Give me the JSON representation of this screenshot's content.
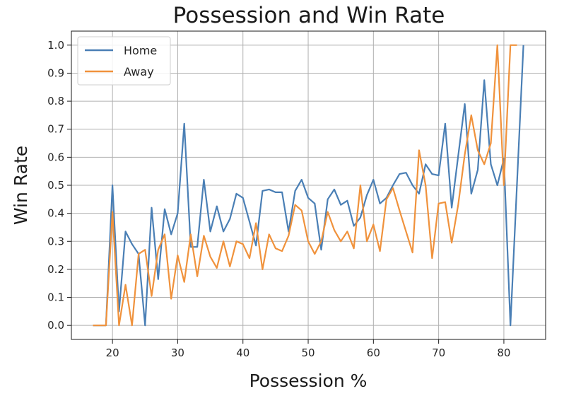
{
  "chart_data": {
    "type": "line",
    "title": "Possession and Win Rate",
    "xlabel": "Possession %",
    "ylabel": "Win Rate",
    "xlim": [
      13.7,
      86.4
    ],
    "ylim": [
      -0.05,
      1.05
    ],
    "xticks": [
      20,
      30,
      40,
      50,
      60,
      70,
      80
    ],
    "yticks": [
      0.0,
      0.1,
      0.2,
      0.3,
      0.4,
      0.5,
      0.6,
      0.7,
      0.8,
      0.9,
      1.0
    ],
    "grid": true,
    "legend": "top-left",
    "series": [
      {
        "name": "Home",
        "color": "#4a7fb5",
        "x": [
          17,
          18,
          19,
          20,
          21,
          22,
          23,
          24,
          25,
          26,
          27,
          28,
          29,
          30,
          31,
          32,
          33,
          34,
          35,
          36,
          37,
          38,
          39,
          40,
          41,
          42,
          43,
          44,
          45,
          46,
          47,
          48,
          49,
          50,
          51,
          52,
          53,
          54,
          55,
          56,
          57,
          58,
          59,
          60,
          61,
          62,
          63,
          64,
          65,
          66,
          67,
          68,
          69,
          70,
          71,
          72,
          73,
          74,
          75,
          76,
          77,
          78,
          79,
          80,
          81,
          82,
          83
        ],
        "y": [
          0.0,
          0.0,
          0.0,
          0.5,
          0.05,
          0.335,
          0.29,
          0.255,
          0.0,
          0.42,
          0.165,
          0.415,
          0.325,
          0.4,
          0.72,
          0.28,
          0.28,
          0.52,
          0.335,
          0.425,
          0.335,
          0.38,
          0.47,
          0.455,
          0.37,
          0.285,
          0.48,
          0.485,
          0.475,
          0.475,
          0.335,
          0.48,
          0.52,
          0.455,
          0.435,
          0.27,
          0.45,
          0.485,
          0.43,
          0.445,
          0.355,
          0.385,
          0.465,
          0.52,
          0.435,
          0.455,
          0.5,
          0.54,
          0.545,
          0.5,
          0.47,
          0.575,
          0.54,
          0.535,
          0.72,
          0.42,
          0.605,
          0.79,
          0.47,
          0.555,
          0.875,
          0.575,
          0.5,
          0.595,
          0.0,
          0.5,
          1.0
        ]
      },
      {
        "name": "Away",
        "color": "#f0923c",
        "x": [
          17,
          18,
          19,
          20,
          21,
          22,
          23,
          24,
          25,
          26,
          27,
          28,
          29,
          30,
          31,
          32,
          33,
          34,
          35,
          36,
          37,
          38,
          39,
          40,
          41,
          42,
          43,
          44,
          45,
          46,
          47,
          48,
          49,
          50,
          51,
          52,
          53,
          54,
          55,
          56,
          57,
          58,
          59,
          60,
          61,
          62,
          63,
          64,
          65,
          66,
          67,
          68,
          69,
          70,
          71,
          72,
          73,
          74,
          75,
          76,
          77,
          78,
          79,
          80,
          81,
          82
        ],
        "y": [
          0.0,
          0.0,
          0.0,
          0.405,
          0.0,
          0.145,
          0.0,
          0.255,
          0.27,
          0.105,
          0.27,
          0.325,
          0.095,
          0.25,
          0.155,
          0.325,
          0.175,
          0.32,
          0.245,
          0.205,
          0.3,
          0.21,
          0.3,
          0.29,
          0.24,
          0.365,
          0.2,
          0.325,
          0.275,
          0.265,
          0.32,
          0.43,
          0.41,
          0.3,
          0.255,
          0.3,
          0.405,
          0.34,
          0.3,
          0.335,
          0.275,
          0.5,
          0.3,
          0.36,
          0.265,
          0.45,
          0.49,
          0.41,
          0.335,
          0.26,
          0.625,
          0.5,
          0.24,
          0.435,
          0.44,
          0.295,
          0.43,
          0.61,
          0.75,
          0.625,
          0.575,
          0.65,
          1.0,
          0.5,
          1.0,
          1.0
        ]
      }
    ]
  }
}
